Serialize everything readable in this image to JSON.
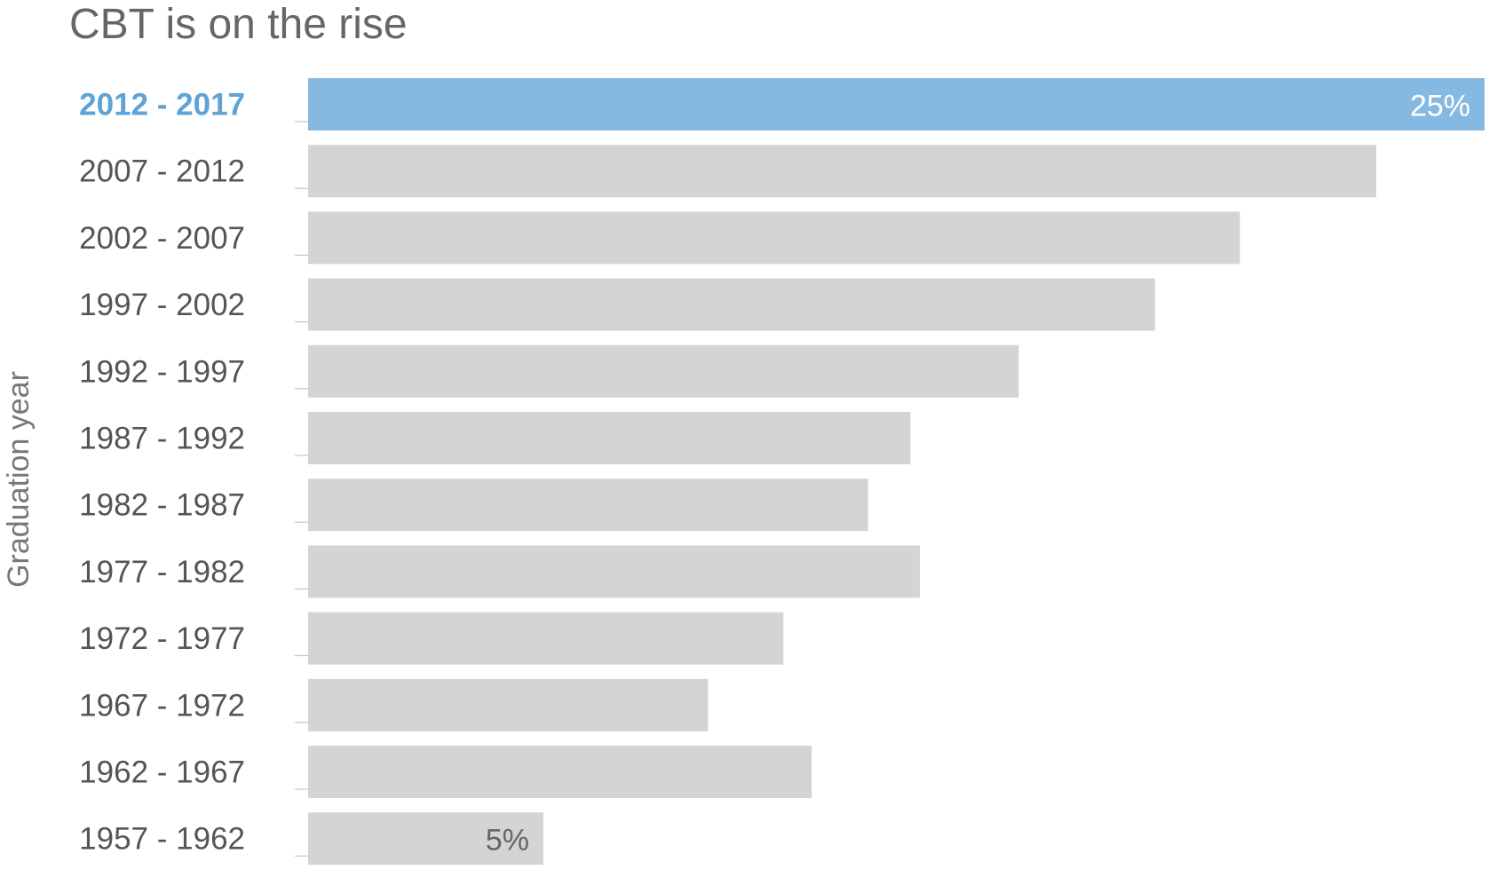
{
  "chart_data": {
    "type": "bar",
    "orientation": "horizontal",
    "title": "CBT is on the rise",
    "ylabel": "Graduation year",
    "xlabel": "",
    "categories": [
      "2012 - 2017",
      "2007 - 2012",
      "2002 - 2007",
      "1997 - 2002",
      "1992 - 1997",
      "1987 - 1992",
      "1982 - 1987",
      "1977 - 1982",
      "1972 - 1977",
      "1967 - 1972",
      "1962 - 1967",
      "1957 - 1962"
    ],
    "values": [
      25,
      22.7,
      19.8,
      18,
      15.1,
      12.8,
      11.9,
      13,
      10.1,
      8.5,
      10.7,
      5
    ],
    "data_labels": [
      {
        "category": "2012 - 2017",
        "text": "25%"
      },
      {
        "category": "1957 - 1962",
        "text": "5%"
      }
    ],
    "xlim": [
      0,
      25
    ],
    "highlight_category": "2012 - 2017",
    "colors": {
      "highlight": "#85b9e2",
      "default": "#d4d4d4",
      "highlight_label": "#5fa3d6",
      "label_on_highlight": "#ffffff",
      "label_on_default": "#666666"
    },
    "grid": false,
    "legend": "none"
  }
}
